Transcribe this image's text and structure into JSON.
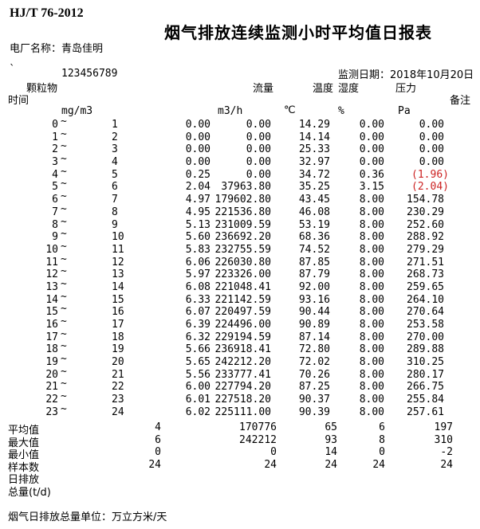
{
  "page": {
    "standard": "HJ/T 76-2012",
    "title": "烟气排放连续监测小时平均值日报表",
    "plant_name_line": "电厂名称：青岛佳明",
    "tick_mark": "`",
    "serial_number": "123456789",
    "monitor_date_line": "监测日期：2018年10月20日",
    "footer_note": "烟气日排放总量单位：万立方米/天"
  },
  "colors": {
    "text": "#000000",
    "alarm_red": "#cc2222",
    "background": "#ffffff"
  },
  "table": {
    "headers": {
      "time": "时间",
      "particulate": "颗粒物",
      "flow": "流量",
      "temperature": "温度",
      "humidity": "湿度",
      "pressure": "压力",
      "remark": "备注"
    },
    "units": {
      "particulate": "mg/m3",
      "flow": "m3/h",
      "temperature": "℃",
      "humidity": "%",
      "pressure": "Pa"
    },
    "tilde": "~",
    "rows": [
      {
        "start": "0",
        "end": "1",
        "pm": "0.00",
        "flow": "0.00",
        "temp": "14.29",
        "hum": "0.00",
        "press": "0.00",
        "red": false
      },
      {
        "start": "1",
        "end": "2",
        "pm": "0.00",
        "flow": "0.00",
        "temp": "14.14",
        "hum": "0.00",
        "press": "0.00",
        "red": false
      },
      {
        "start": "2",
        "end": "3",
        "pm": "0.00",
        "flow": "0.00",
        "temp": "25.33",
        "hum": "0.00",
        "press": "0.00",
        "red": false
      },
      {
        "start": "3",
        "end": "4",
        "pm": "0.00",
        "flow": "0.00",
        "temp": "32.97",
        "hum": "0.00",
        "press": "0.00",
        "red": false
      },
      {
        "start": "4",
        "end": "5",
        "pm": "0.25",
        "flow": "0.00",
        "temp": "34.72",
        "hum": "0.36",
        "press": "(1.96)",
        "red": true
      },
      {
        "start": "5",
        "end": "6",
        "pm": "2.04",
        "flow": "37963.80",
        "temp": "35.25",
        "hum": "3.15",
        "press": "(2.04)",
        "red": true
      },
      {
        "start": "6",
        "end": "7",
        "pm": "4.97",
        "flow": "179602.80",
        "temp": "43.45",
        "hum": "8.00",
        "press": "154.78",
        "red": false
      },
      {
        "start": "7",
        "end": "8",
        "pm": "4.95",
        "flow": "221536.80",
        "temp": "46.08",
        "hum": "8.00",
        "press": "230.29",
        "red": false
      },
      {
        "start": "8",
        "end": "9",
        "pm": "5.13",
        "flow": "231009.59",
        "temp": "53.19",
        "hum": "8.00",
        "press": "252.60",
        "red": false
      },
      {
        "start": "9",
        "end": "10",
        "pm": "5.60",
        "flow": "236692.20",
        "temp": "68.36",
        "hum": "8.00",
        "press": "288.92",
        "red": false
      },
      {
        "start": "10",
        "end": "11",
        "pm": "5.83",
        "flow": "232755.59",
        "temp": "74.52",
        "hum": "8.00",
        "press": "279.29",
        "red": false
      },
      {
        "start": "11",
        "end": "12",
        "pm": "6.06",
        "flow": "226030.80",
        "temp": "87.85",
        "hum": "8.00",
        "press": "271.51",
        "red": false
      },
      {
        "start": "12",
        "end": "13",
        "pm": "5.97",
        "flow": "223326.00",
        "temp": "87.79",
        "hum": "8.00",
        "press": "268.73",
        "red": false
      },
      {
        "start": "13",
        "end": "14",
        "pm": "6.08",
        "flow": "221048.41",
        "temp": "92.00",
        "hum": "8.00",
        "press": "259.65",
        "red": false
      },
      {
        "start": "14",
        "end": "15",
        "pm": "6.33",
        "flow": "221142.59",
        "temp": "93.16",
        "hum": "8.00",
        "press": "264.10",
        "red": false
      },
      {
        "start": "15",
        "end": "16",
        "pm": "6.07",
        "flow": "220497.59",
        "temp": "90.44",
        "hum": "8.00",
        "press": "270.64",
        "red": false
      },
      {
        "start": "16",
        "end": "17",
        "pm": "6.39",
        "flow": "224496.00",
        "temp": "90.89",
        "hum": "8.00",
        "press": "253.58",
        "red": false
      },
      {
        "start": "17",
        "end": "18",
        "pm": "6.32",
        "flow": "229194.59",
        "temp": "87.14",
        "hum": "8.00",
        "press": "270.00",
        "red": false
      },
      {
        "start": "18",
        "end": "19",
        "pm": "5.66",
        "flow": "236918.41",
        "temp": "72.80",
        "hum": "8.00",
        "press": "289.88",
        "red": false
      },
      {
        "start": "19",
        "end": "20",
        "pm": "5.65",
        "flow": "242212.20",
        "temp": "72.02",
        "hum": "8.00",
        "press": "310.25",
        "red": false
      },
      {
        "start": "20",
        "end": "21",
        "pm": "5.56",
        "flow": "233777.41",
        "temp": "70.26",
        "hum": "8.00",
        "press": "280.17",
        "red": false
      },
      {
        "start": "21",
        "end": "22",
        "pm": "6.00",
        "flow": "227794.20",
        "temp": "87.25",
        "hum": "8.00",
        "press": "266.75",
        "red": false
      },
      {
        "start": "22",
        "end": "23",
        "pm": "6.01",
        "flow": "227518.20",
        "temp": "90.37",
        "hum": "8.00",
        "press": "255.84",
        "red": false
      },
      {
        "start": "23",
        "end": "24",
        "pm": "6.02",
        "flow": "225111.00",
        "temp": "90.39",
        "hum": "8.00",
        "press": "257.61",
        "red": false
      }
    ],
    "summary_rows": [
      {
        "label": "平均值",
        "pm": "4",
        "flow": "170776",
        "temp": "65",
        "hum": "6",
        "press": "197"
      },
      {
        "label": "最大值",
        "pm": "6",
        "flow": "242212",
        "temp": "93",
        "hum": "8",
        "press": "310"
      },
      {
        "label": "最小值",
        "pm": "0",
        "flow": "0",
        "temp": "14",
        "hum": "0",
        "press": "-2"
      },
      {
        "label": "样本数",
        "pm": "24",
        "flow": "24",
        "temp": "24",
        "hum": "24",
        "press": "24"
      },
      {
        "label": "日排放",
        "pm": "",
        "flow": "",
        "temp": "",
        "hum": "",
        "press": ""
      },
      {
        "label": "总量(t/d)",
        "pm": "",
        "flow": "",
        "temp": "",
        "hum": "",
        "press": ""
      }
    ]
  }
}
